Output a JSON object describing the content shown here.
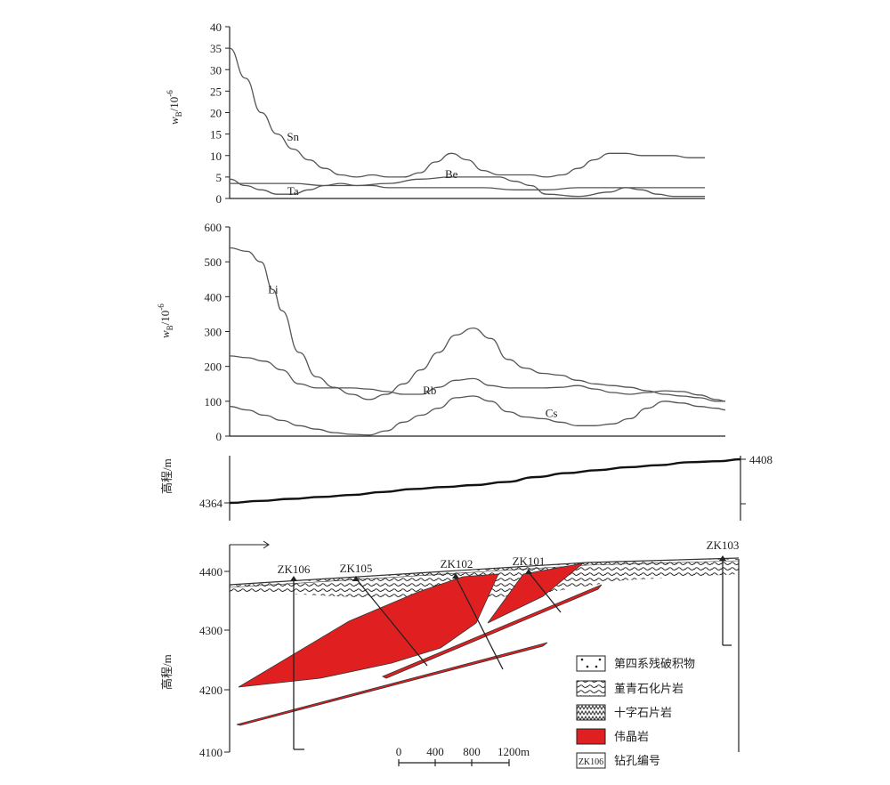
{
  "chart_data": [
    {
      "type": "line",
      "ylabel": "w_B/10^-6",
      "ylim": [
        0,
        40
      ],
      "yticks": [
        0,
        5,
        10,
        15,
        20,
        25,
        30,
        35,
        40
      ],
      "series": [
        {
          "name": "Sn",
          "values": [
            [
              0,
              35
            ],
            [
              1,
              28
            ],
            [
              2,
              20
            ],
            [
              3,
              15
            ],
            [
              4,
              11.5
            ],
            [
              5,
              9
            ],
            [
              6,
              7
            ],
            [
              7,
              5.5
            ],
            [
              8,
              5
            ],
            [
              9,
              5.5
            ],
            [
              10,
              5
            ],
            [
              11,
              5
            ],
            [
              12,
              6
            ],
            [
              13,
              8.5
            ],
            [
              14,
              10.5
            ],
            [
              15,
              9
            ],
            [
              16,
              6.5
            ],
            [
              17,
              5.5
            ],
            [
              18,
              5.5
            ],
            [
              19,
              5.5
            ],
            [
              20,
              5
            ],
            [
              21,
              5.5
            ],
            [
              22,
              7
            ],
            [
              23,
              9
            ],
            [
              24,
              10.5
            ],
            [
              25,
              10.5
            ],
            [
              26,
              10
            ],
            [
              27,
              10
            ],
            [
              28,
              10
            ],
            [
              29,
              9.5
            ],
            [
              30,
              9.5
            ]
          ]
        },
        {
          "name": "Be",
          "values": [
            [
              0,
              3.5
            ],
            [
              2,
              3.5
            ],
            [
              4,
              3.5
            ],
            [
              6,
              3
            ],
            [
              8,
              3
            ],
            [
              10,
              3.5
            ],
            [
              12,
              4.5
            ],
            [
              14,
              5
            ],
            [
              16,
              5
            ],
            [
              17,
              5
            ],
            [
              18,
              4
            ],
            [
              19,
              3
            ],
            [
              20,
              1
            ],
            [
              22,
              0.5
            ],
            [
              24,
              1.5
            ],
            [
              25,
              2.5
            ],
            [
              26,
              2
            ],
            [
              27,
              1
            ],
            [
              28,
              0.5
            ],
            [
              30,
              0.5
            ]
          ]
        },
        {
          "name": "Ta",
          "values": [
            [
              0,
              4.5
            ],
            [
              1,
              3
            ],
            [
              2,
              2
            ],
            [
              3,
              1
            ],
            [
              4,
              1
            ],
            [
              5,
              2
            ],
            [
              6,
              3
            ],
            [
              7,
              3.5
            ],
            [
              8,
              3
            ],
            [
              9,
              3
            ],
            [
              10,
              2.5
            ],
            [
              12,
              2.5
            ],
            [
              14,
              2.5
            ],
            [
              16,
              2.5
            ],
            [
              18,
              2
            ],
            [
              20,
              2
            ],
            [
              22,
              2.5
            ],
            [
              24,
              2.5
            ],
            [
              26,
              2.5
            ],
            [
              28,
              2.5
            ],
            [
              30,
              2.5
            ]
          ]
        }
      ],
      "labels": [
        {
          "text": "Sn",
          "x": 4,
          "y": 13.5
        },
        {
          "text": "Be",
          "x": 14,
          "y": 4.8
        },
        {
          "text": "Ta",
          "x": 4,
          "y": 0.8
        }
      ]
    },
    {
      "type": "line",
      "ylabel": "w_B/10^-6",
      "ylim": [
        0,
        600
      ],
      "yticks": [
        0,
        100,
        200,
        300,
        400,
        500,
        600
      ],
      "series": [
        {
          "name": "Li",
          "values": [
            [
              0,
              540
            ],
            [
              1,
              530
            ],
            [
              1.8,
              500
            ],
            [
              2.5,
              420
            ],
            [
              3,
              360
            ],
            [
              4,
              240
            ],
            [
              5,
              170
            ],
            [
              6,
              140
            ],
            [
              7,
              120
            ],
            [
              8,
              105
            ],
            [
              9,
              120
            ],
            [
              10,
              150
            ],
            [
              11,
              190
            ],
            [
              12,
              240
            ],
            [
              13,
              290
            ],
            [
              14,
              310
            ],
            [
              15,
              280
            ],
            [
              16,
              220
            ],
            [
              17,
              195
            ],
            [
              18,
              180
            ],
            [
              19,
              175
            ],
            [
              20,
              160
            ],
            [
              21,
              150
            ],
            [
              22,
              145
            ],
            [
              23,
              140
            ],
            [
              24,
              130
            ],
            [
              25,
              120
            ],
            [
              26,
              115
            ],
            [
              27,
              110
            ],
            [
              28,
              100
            ],
            [
              28.5,
              100
            ]
          ]
        },
        {
          "name": "Rb",
          "values": [
            [
              0,
              230
            ],
            [
              1,
              225
            ],
            [
              2,
              215
            ],
            [
              3,
              190
            ],
            [
              4,
              150
            ],
            [
              5,
              138
            ],
            [
              6,
              138
            ],
            [
              7,
              138
            ],
            [
              8,
              135
            ],
            [
              9,
              128
            ],
            [
              10,
              120
            ],
            [
              11,
              120
            ],
            [
              12,
              140
            ],
            [
              13,
              160
            ],
            [
              14,
              165
            ],
            [
              15,
              145
            ],
            [
              16,
              138
            ],
            [
              17,
              138
            ],
            [
              18,
              138
            ],
            [
              19,
              140
            ],
            [
              20,
              145
            ],
            [
              21,
              135
            ],
            [
              22,
              125
            ],
            [
              23,
              120
            ],
            [
              24,
              125
            ],
            [
              25,
              130
            ],
            [
              26,
              128
            ],
            [
              27,
              118
            ],
            [
              28,
              105
            ],
            [
              28.5,
              100
            ]
          ]
        },
        {
          "name": "Cs",
          "values": [
            [
              0,
              85
            ],
            [
              1,
              75
            ],
            [
              2,
              60
            ],
            [
              3,
              45
            ],
            [
              4,
              30
            ],
            [
              5,
              20
            ],
            [
              6,
              10
            ],
            [
              7,
              5
            ],
            [
              8,
              3
            ],
            [
              9,
              15
            ],
            [
              10,
              40
            ],
            [
              11,
              60
            ],
            [
              12,
              80
            ],
            [
              13,
              110
            ],
            [
              14,
              115
            ],
            [
              15,
              100
            ],
            [
              16,
              70
            ],
            [
              17,
              55
            ],
            [
              18,
              50
            ],
            [
              19,
              40
            ],
            [
              20,
              30
            ],
            [
              21,
              30
            ],
            [
              22,
              35
            ],
            [
              23,
              50
            ],
            [
              24,
              80
            ],
            [
              25,
              100
            ],
            [
              26,
              95
            ],
            [
              27,
              85
            ],
            [
              28,
              80
            ],
            [
              28.5,
              75
            ]
          ]
        }
      ],
      "labels": [
        {
          "text": "Li",
          "x": 2.5,
          "y": 410
        },
        {
          "text": "Rb",
          "x": 11.5,
          "y": 120
        },
        {
          "text": "Cs",
          "x": 18.5,
          "y": 55
        }
      ]
    },
    {
      "type": "line",
      "ylabel": "高程/m",
      "labels_left": "4364",
      "labels_right": "4408",
      "series": [
        {
          "name": "elevation",
          "values": [
            [
              0,
              4364
            ],
            [
              3,
              4366
            ],
            [
              6,
              4368
            ],
            [
              9,
              4370
            ],
            [
              12,
              4372
            ],
            [
              15,
              4375
            ],
            [
              18,
              4378
            ],
            [
              21,
              4380
            ],
            [
              24,
              4382
            ],
            [
              27,
              4385
            ],
            [
              30,
              4390
            ],
            [
              33,
              4394
            ],
            [
              36,
              4397
            ],
            [
              39,
              4400
            ],
            [
              42,
              4402
            ],
            [
              45,
              4405
            ],
            [
              48,
              4406
            ],
            [
              50,
              4408
            ]
          ]
        }
      ]
    }
  ],
  "section": {
    "ylabel": "高程/m",
    "yticks": [
      "4400",
      "4300",
      "4200",
      "4100"
    ],
    "drillholes": [
      "ZK106",
      "ZK105",
      "ZK102",
      "ZK101",
      "ZK103"
    ],
    "scale": {
      "ticks": [
        "0",
        "400",
        "800",
        "1200"
      ],
      "unit": "m"
    },
    "legend": [
      {
        "text": "第四系残破积物",
        "swatch": "quaternary"
      },
      {
        "text": "堇青石化片岩",
        "swatch": "cordierite"
      },
      {
        "text": "十字石片岩",
        "swatch": "staurolite"
      },
      {
        "text": "伟晶岩",
        "swatch": "pegmatite",
        "color": "#e02020"
      },
      {
        "text": "钻孔编号",
        "swatch": "drill",
        "code": "ZK106"
      }
    ]
  }
}
